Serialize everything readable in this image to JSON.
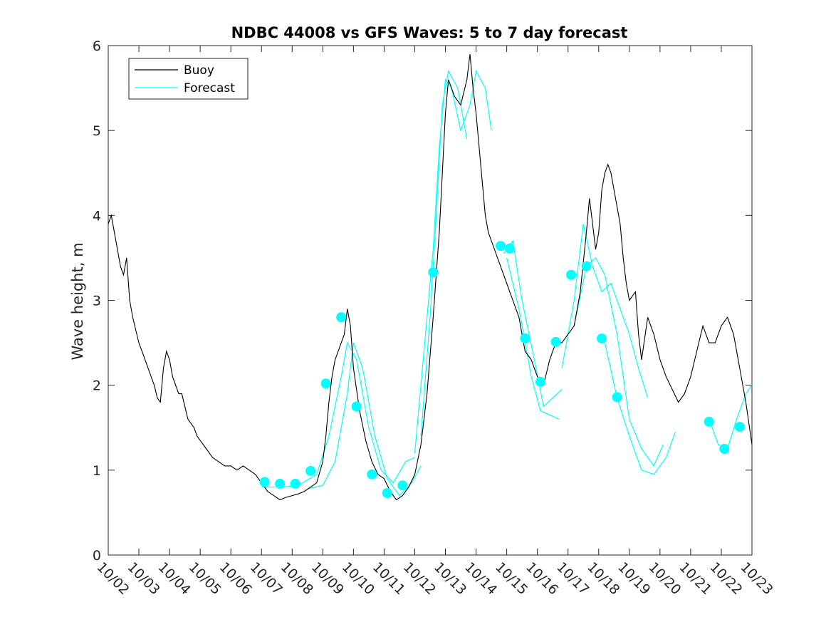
{
  "chart_data": {
    "type": "line",
    "title": "NDBC 44008 vs GFS Waves: 5 to 7 day forecast",
    "xlabel": "",
    "ylabel": "Wave height, m",
    "xlim": [
      0,
      21
    ],
    "ylim": [
      0,
      6
    ],
    "yticks": [
      0,
      1,
      2,
      3,
      4,
      5,
      6
    ],
    "xtick_labels": [
      "10/02",
      "10/03",
      "10/04",
      "10/05",
      "10/06",
      "10/07",
      "10/08",
      "10/09",
      "10/10",
      "10/11",
      "10/12",
      "10/13",
      "10/14",
      "10/15",
      "10/16",
      "10/17",
      "10/18",
      "10/19",
      "10/20",
      "10/21",
      "10/22",
      "10/23"
    ],
    "legend": {
      "location": "top-left",
      "entries": [
        {
          "label": "Buoy",
          "color": "#000000"
        },
        {
          "label": "Forecast",
          "color": "#00ffff"
        }
      ]
    },
    "series": [
      {
        "name": "Buoy",
        "color": "#000000",
        "points": [
          [
            0.0,
            3.9
          ],
          [
            0.1,
            4.0
          ],
          [
            0.2,
            3.8
          ],
          [
            0.3,
            3.6
          ],
          [
            0.4,
            3.4
          ],
          [
            0.5,
            3.3
          ],
          [
            0.6,
            3.5
          ],
          [
            0.7,
            3.0
          ],
          [
            0.8,
            2.8
          ],
          [
            0.9,
            2.65
          ],
          [
            1.0,
            2.5
          ],
          [
            1.1,
            2.4
          ],
          [
            1.2,
            2.3
          ],
          [
            1.3,
            2.2
          ],
          [
            1.4,
            2.1
          ],
          [
            1.5,
            2.0
          ],
          [
            1.6,
            1.85
          ],
          [
            1.7,
            1.8
          ],
          [
            1.8,
            2.2
          ],
          [
            1.9,
            2.4
          ],
          [
            2.0,
            2.3
          ],
          [
            2.1,
            2.1
          ],
          [
            2.2,
            2.0
          ],
          [
            2.3,
            1.9
          ],
          [
            2.4,
            1.9
          ],
          [
            2.5,
            1.75
          ],
          [
            2.6,
            1.6
          ],
          [
            2.7,
            1.55
          ],
          [
            2.8,
            1.5
          ],
          [
            2.9,
            1.4
          ],
          [
            3.0,
            1.35
          ],
          [
            3.2,
            1.25
          ],
          [
            3.4,
            1.15
          ],
          [
            3.6,
            1.1
          ],
          [
            3.8,
            1.05
          ],
          [
            4.0,
            1.05
          ],
          [
            4.2,
            1.0
          ],
          [
            4.4,
            1.05
          ],
          [
            4.6,
            1.0
          ],
          [
            4.8,
            0.95
          ],
          [
            5.0,
            0.85
          ],
          [
            5.2,
            0.75
          ],
          [
            5.4,
            0.7
          ],
          [
            5.6,
            0.65
          ],
          [
            5.8,
            0.68
          ],
          [
            6.0,
            0.7
          ],
          [
            6.2,
            0.72
          ],
          [
            6.4,
            0.75
          ],
          [
            6.6,
            0.8
          ],
          [
            6.8,
            0.85
          ],
          [
            7.0,
            1.1
          ],
          [
            7.1,
            1.4
          ],
          [
            7.2,
            1.8
          ],
          [
            7.3,
            2.1
          ],
          [
            7.4,
            2.3
          ],
          [
            7.5,
            2.4
          ],
          [
            7.6,
            2.5
          ],
          [
            7.7,
            2.6
          ],
          [
            7.8,
            2.9
          ],
          [
            7.9,
            2.7
          ],
          [
            8.0,
            2.2
          ],
          [
            8.2,
            1.7
          ],
          [
            8.4,
            1.35
          ],
          [
            8.6,
            1.1
          ],
          [
            8.8,
            0.95
          ],
          [
            9.0,
            0.9
          ],
          [
            9.2,
            0.75
          ],
          [
            9.4,
            0.65
          ],
          [
            9.6,
            0.7
          ],
          [
            9.8,
            0.8
          ],
          [
            10.0,
            0.95
          ],
          [
            10.2,
            1.3
          ],
          [
            10.4,
            1.9
          ],
          [
            10.6,
            2.8
          ],
          [
            10.8,
            3.8
          ],
          [
            10.9,
            4.5
          ],
          [
            11.0,
            5.2
          ],
          [
            11.1,
            5.6
          ],
          [
            11.3,
            5.4
          ],
          [
            11.5,
            5.3
          ],
          [
            11.7,
            5.6
          ],
          [
            11.8,
            5.9
          ],
          [
            11.9,
            5.5
          ],
          [
            12.0,
            5.2
          ],
          [
            12.1,
            4.8
          ],
          [
            12.2,
            4.4
          ],
          [
            12.3,
            4.0
          ],
          [
            12.4,
            3.8
          ],
          [
            12.6,
            3.6
          ],
          [
            12.8,
            3.4
          ],
          [
            13.0,
            3.2
          ],
          [
            13.2,
            3.0
          ],
          [
            13.4,
            2.8
          ],
          [
            13.6,
            2.4
          ],
          [
            13.8,
            2.3
          ],
          [
            14.0,
            2.1
          ],
          [
            14.2,
            2.0
          ],
          [
            14.4,
            2.3
          ],
          [
            14.6,
            2.5
          ],
          [
            14.8,
            2.5
          ],
          [
            15.0,
            2.6
          ],
          [
            15.2,
            2.7
          ],
          [
            15.4,
            3.1
          ],
          [
            15.6,
            3.8
          ],
          [
            15.7,
            4.2
          ],
          [
            15.8,
            3.9
          ],
          [
            15.9,
            3.6
          ],
          [
            16.0,
            3.8
          ],
          [
            16.1,
            4.3
          ],
          [
            16.2,
            4.5
          ],
          [
            16.3,
            4.6
          ],
          [
            16.4,
            4.5
          ],
          [
            16.5,
            4.3
          ],
          [
            16.6,
            4.1
          ],
          [
            16.7,
            3.9
          ],
          [
            16.8,
            3.5
          ],
          [
            16.9,
            3.2
          ],
          [
            17.0,
            3.0
          ],
          [
            17.2,
            3.1
          ],
          [
            17.3,
            2.6
          ],
          [
            17.4,
            2.3
          ],
          [
            17.6,
            2.8
          ],
          [
            17.8,
            2.6
          ],
          [
            18.0,
            2.3
          ],
          [
            18.2,
            2.1
          ],
          [
            18.4,
            1.95
          ],
          [
            18.6,
            1.8
          ],
          [
            18.8,
            1.9
          ],
          [
            19.0,
            2.1
          ],
          [
            19.2,
            2.4
          ],
          [
            19.4,
            2.7
          ],
          [
            19.6,
            2.5
          ],
          [
            19.8,
            2.5
          ],
          [
            20.0,
            2.7
          ],
          [
            20.2,
            2.8
          ],
          [
            20.4,
            2.6
          ],
          [
            20.6,
            2.2
          ],
          [
            20.8,
            1.8
          ],
          [
            21.0,
            1.3
          ]
        ]
      },
      {
        "name": "Forecast",
        "color": "#00ffff",
        "points": [
          [
            5.1,
            0.86
          ],
          [
            5.6,
            0.84
          ],
          [
            6.1,
            0.84
          ],
          [
            6.6,
            0.99
          ],
          [
            7.1,
            2.02
          ],
          [
            7.6,
            2.8
          ],
          [
            8.1,
            1.75
          ],
          [
            8.6,
            0.95
          ],
          [
            9.1,
            0.73
          ],
          [
            9.6,
            0.82
          ],
          [
            10.6,
            3.33
          ],
          [
            12.8,
            3.64
          ],
          [
            13.1,
            3.61
          ],
          [
            13.6,
            2.55
          ],
          [
            14.1,
            2.04
          ],
          [
            14.6,
            2.51
          ],
          [
            15.1,
            3.3
          ],
          [
            15.6,
            3.4
          ],
          [
            16.1,
            2.55
          ],
          [
            16.6,
            1.86
          ],
          [
            19.6,
            1.57
          ],
          [
            20.1,
            1.25
          ],
          [
            20.6,
            1.51
          ]
        ],
        "segments": [
          [
            [
              5.0,
              0.8
            ],
            [
              5.6,
              0.8
            ],
            [
              6.2,
              0.82
            ],
            [
              6.8,
              0.95
            ],
            [
              7.2,
              1.4
            ],
            [
              7.6,
              2.1
            ],
            [
              7.8,
              2.5
            ],
            [
              8.1,
              2.3
            ],
            [
              8.5,
              1.5
            ],
            [
              8.9,
              1.0
            ],
            [
              9.3,
              0.85
            ],
            [
              9.7,
              1.1
            ],
            [
              10.0,
              1.15
            ]
          ],
          [
            [
              6.5,
              0.78
            ],
            [
              7.0,
              0.82
            ],
            [
              7.4,
              1.1
            ],
            [
              7.8,
              1.9
            ],
            [
              8.0,
              2.5
            ],
            [
              8.3,
              2.2
            ],
            [
              8.7,
              1.4
            ],
            [
              9.1,
              0.9
            ],
            [
              9.5,
              0.7
            ],
            [
              9.9,
              0.85
            ],
            [
              10.2,
              1.05
            ]
          ],
          [
            [
              10.0,
              1.2
            ],
            [
              10.3,
              2.4
            ],
            [
              10.6,
              3.6
            ],
            [
              10.8,
              4.8
            ],
            [
              11.0,
              5.6
            ],
            [
              11.2,
              5.5
            ],
            [
              11.5,
              5.0
            ],
            [
              11.8,
              5.3
            ],
            [
              12.0,
              5.7
            ],
            [
              12.3,
              5.5
            ],
            [
              12.5,
              5.0
            ]
          ],
          [
            [
              10.2,
              1.4
            ],
            [
              10.5,
              2.8
            ],
            [
              10.7,
              4.0
            ],
            [
              10.9,
              5.3
            ],
            [
              11.1,
              5.7
            ],
            [
              11.4,
              5.5
            ],
            [
              11.7,
              4.9
            ]
          ],
          [
            [
              12.9,
              3.55
            ],
            [
              13.2,
              3.7
            ],
            [
              13.5,
              3.0
            ],
            [
              13.9,
              2.3
            ],
            [
              14.2,
              1.75
            ],
            [
              14.5,
              1.85
            ],
            [
              14.8,
              1.95
            ]
          ],
          [
            [
              13.0,
              3.5
            ],
            [
              13.4,
              2.9
            ],
            [
              13.8,
              2.1
            ],
            [
              14.1,
              1.7
            ],
            [
              14.4,
              1.65
            ],
            [
              14.7,
              1.6
            ]
          ],
          [
            [
              14.8,
              2.2
            ],
            [
              15.2,
              3.0
            ],
            [
              15.5,
              3.9
            ],
            [
              15.8,
              3.4
            ],
            [
              16.1,
              3.1
            ],
            [
              16.4,
              3.2
            ],
            [
              16.7,
              2.9
            ],
            [
              17.0,
              2.6
            ],
            [
              17.3,
              2.2
            ],
            [
              17.6,
              1.85
            ]
          ],
          [
            [
              15.2,
              2.7
            ],
            [
              15.6,
              3.4
            ],
            [
              15.9,
              3.5
            ],
            [
              16.2,
              3.3
            ],
            [
              16.6,
              2.6
            ],
            [
              17.0,
              1.6
            ],
            [
              17.4,
              1.25
            ],
            [
              17.8,
              1.05
            ],
            [
              18.1,
              1.3
            ]
          ],
          [
            [
              16.2,
              2.5
            ],
            [
              16.6,
              1.85
            ],
            [
              17.0,
              1.4
            ],
            [
              17.4,
              1.0
            ],
            [
              17.8,
              0.95
            ],
            [
              18.2,
              1.15
            ],
            [
              18.5,
              1.45
            ]
          ],
          [
            [
              19.6,
              1.6
            ],
            [
              19.9,
              1.3
            ],
            [
              20.2,
              1.25
            ],
            [
              20.5,
              1.6
            ],
            [
              20.8,
              1.9
            ],
            [
              21.0,
              2.0
            ]
          ]
        ]
      }
    ]
  }
}
